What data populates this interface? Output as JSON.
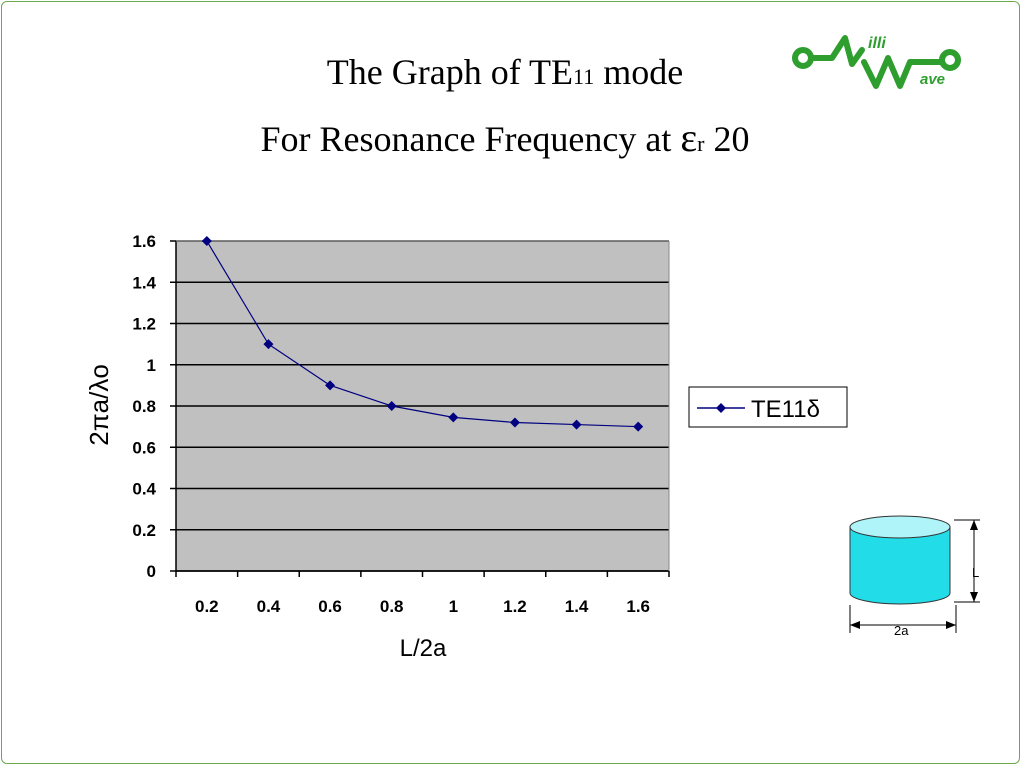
{
  "slide": {
    "title_line1_pre": "The Graph of TE",
    "title_line1_sub": "11",
    "title_line1_post": " mode",
    "title_line2_pre": "For Resonance  Frequency at ",
    "title_line2_symbol": "ε",
    "title_line2_sub": "r",
    "title_line2_post": " 20"
  },
  "logo": {
    "text_top": "illi",
    "text_bottom": "ave",
    "color": "#2e9e2e"
  },
  "cylinder": {
    "height_label": "L",
    "diameter_label": "2a",
    "fill": "#22dde8"
  },
  "chart_data": {
    "type": "line",
    "x": [
      0.2,
      0.4,
      0.6,
      0.8,
      1.0,
      1.2,
      1.4,
      1.6
    ],
    "xtick_labels": [
      "0.2",
      "0.4",
      "0.6",
      "0.8",
      "1",
      "1.2",
      "1.4",
      "1.6"
    ],
    "series": [
      {
        "name": "TE11δ",
        "values": [
          1.6,
          1.1,
          0.9,
          0.8,
          0.745,
          0.72,
          0.71,
          0.7
        ],
        "color": "#000080"
      }
    ],
    "ytick_labels": [
      "0",
      "0.2",
      "0.4",
      "0.6",
      "0.8",
      "1",
      "1.2",
      "1.4",
      "1.6"
    ],
    "xlabel": "L/2a",
    "ylabel": "2πa/λo",
    "ylim": [
      0,
      1.6
    ],
    "grid": true,
    "plot_background": "#c0c0c0",
    "legend_position": "right"
  }
}
